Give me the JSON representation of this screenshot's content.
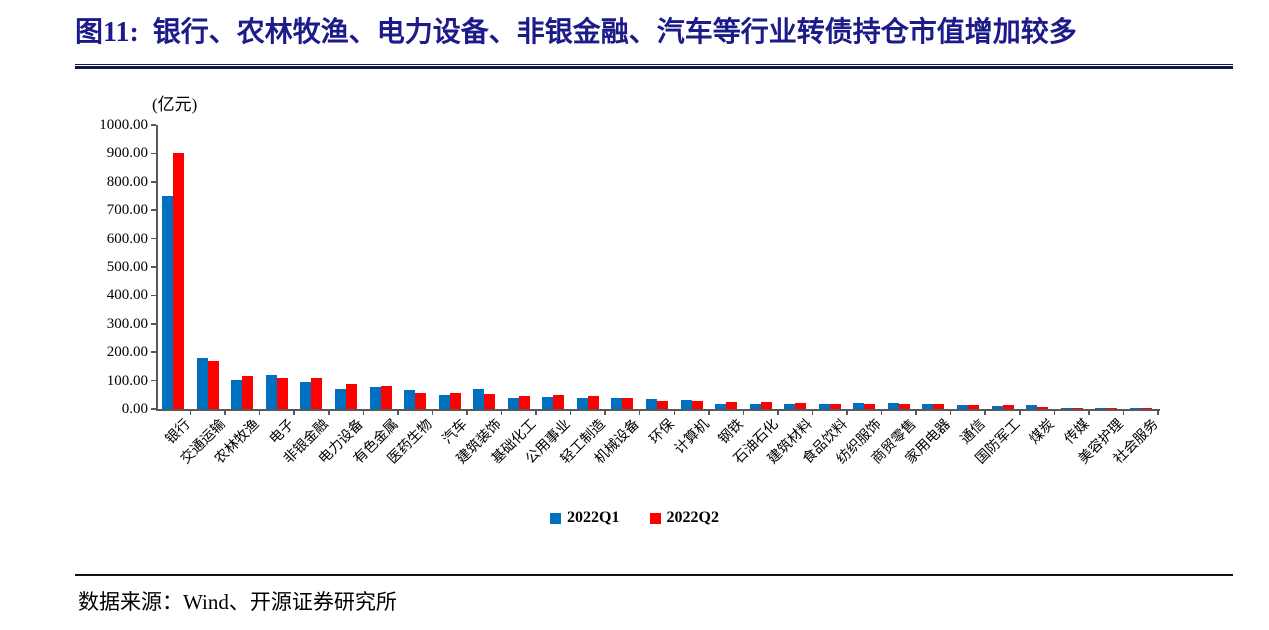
{
  "title": {
    "label": "图11:",
    "text": "银行、农林牧渔、电力设备、非银金融、汽车等行业转债持仓市值增加较多"
  },
  "footer": {
    "source": "数据来源：Wind、开源证券研究所"
  },
  "colors": {
    "title": "#1b1b8a",
    "title_rule": "#15154d",
    "axis": "#595959",
    "series_q1": "#0070c0",
    "series_q2": "#ff0000"
  },
  "chart_data": {
    "type": "bar",
    "title": "",
    "unit": "(亿元)",
    "xlabel": "",
    "ylabel": "",
    "ylim": [
      0,
      1000
    ],
    "ytick_step": 100,
    "ytick_decimals": 2,
    "grid": false,
    "legend_position": "bottom",
    "categories": [
      "银行",
      "交通运输",
      "农林牧渔",
      "电子",
      "非银金融",
      "电力设备",
      "有色金属",
      "医药生物",
      "汽车",
      "建筑装饰",
      "基础化工",
      "公用事业",
      "轻工制造",
      "机械设备",
      "环保",
      "计算机",
      "钢铁",
      "石油石化",
      "建筑材料",
      "食品饮料",
      "纺织服饰",
      "商贸零售",
      "家用电器",
      "通信",
      "国防军工",
      "煤炭",
      "传媒",
      "美容护理",
      "社会服务"
    ],
    "series": [
      {
        "name": "2022Q1",
        "color": "#0070c0",
        "values": [
          750,
          181,
          102,
          120,
          96,
          72,
          79,
          68,
          48,
          70,
          40,
          43,
          40,
          40,
          34,
          30,
          18,
          18,
          18,
          19,
          20,
          20,
          16,
          15,
          10,
          14,
          4,
          1.5,
          1
        ]
      },
      {
        "name": "2022Q2",
        "color": "#ff0000",
        "values": [
          900,
          170,
          115,
          109,
          108,
          88,
          82,
          58,
          57,
          52,
          47,
          50,
          47,
          40,
          28,
          28,
          24,
          23,
          20,
          18,
          18,
          18,
          16,
          13,
          14,
          8,
          4,
          1.5,
          0.5
        ]
      }
    ]
  }
}
